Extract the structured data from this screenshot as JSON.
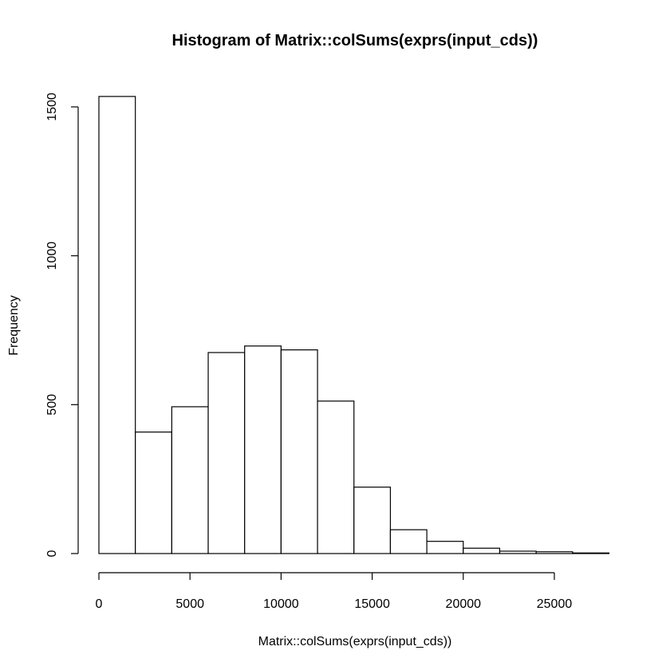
{
  "chart_data": {
    "type": "bar",
    "title": "Histogram of Matrix::colSums(exprs(input_cds))",
    "xlabel": "Matrix::colSums(exprs(input_cds))",
    "ylabel": "Frequency",
    "bin_width": 2000,
    "bins": [
      {
        "start": 0,
        "end": 2000,
        "count": 1535
      },
      {
        "start": 2000,
        "end": 4000,
        "count": 408
      },
      {
        "start": 4000,
        "end": 6000,
        "count": 493
      },
      {
        "start": 6000,
        "end": 8000,
        "count": 675
      },
      {
        "start": 8000,
        "end": 10000,
        "count": 697
      },
      {
        "start": 10000,
        "end": 12000,
        "count": 684
      },
      {
        "start": 12000,
        "end": 14000,
        "count": 512
      },
      {
        "start": 14000,
        "end": 16000,
        "count": 223
      },
      {
        "start": 16000,
        "end": 18000,
        "count": 80
      },
      {
        "start": 18000,
        "end": 20000,
        "count": 41
      },
      {
        "start": 20000,
        "end": 22000,
        "count": 18
      },
      {
        "start": 22000,
        "end": 24000,
        "count": 8
      },
      {
        "start": 24000,
        "end": 26000,
        "count": 6
      },
      {
        "start": 26000,
        "end": 28000,
        "count": 2
      }
    ],
    "xlim": [
      0,
      28000
    ],
    "ylim": [
      0,
      1535
    ],
    "xticks": [
      0,
      5000,
      10000,
      15000,
      20000,
      25000
    ],
    "xtick_labels": [
      "0",
      "5000",
      "10000",
      "15000",
      "20000",
      "25000"
    ],
    "yticks": [
      0,
      500,
      1000,
      1500
    ],
    "ytick_labels": [
      "0",
      "500",
      "1000",
      "1500"
    ],
    "grid": false,
    "legend": "none"
  }
}
